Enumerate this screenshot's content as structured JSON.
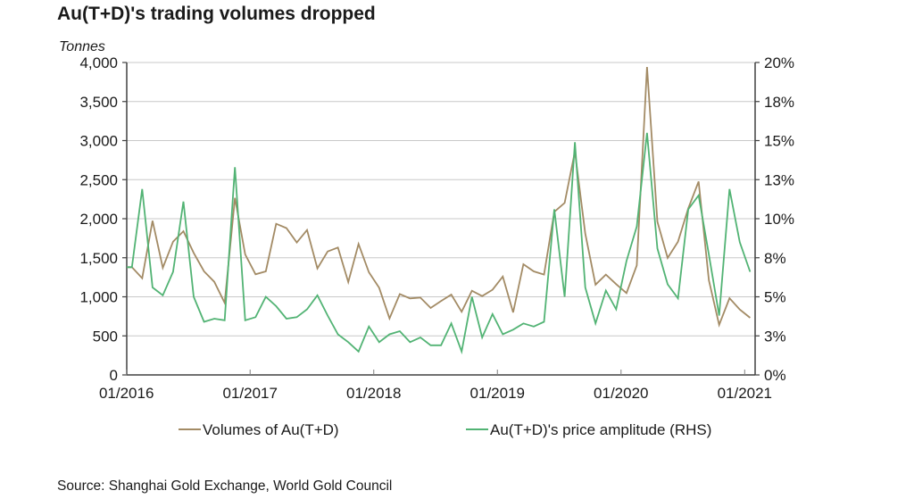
{
  "chart_data": {
    "type": "line",
    "title": "Au(T+D)'s trading volumes dropped",
    "source": "Source: Shanghai Gold Exchange, World Gold Council",
    "ylabel": "Tonnes",
    "ylabel_right": "",
    "xlabel": "",
    "grid": true,
    "legend_position": "bottom",
    "x_ticks": [
      "01/2016",
      "01/2017",
      "01/2018",
      "01/2019",
      "01/2020",
      "01/2021"
    ],
    "y_ticks": [
      "0",
      "500",
      "1,000",
      "1,500",
      "2,000",
      "2,500",
      "3,000",
      "3,500",
      "4,000"
    ],
    "y_ticks_right": [
      "0%",
      "3%",
      "5%",
      "8%",
      "10%",
      "13%",
      "15%",
      "18%",
      "20%"
    ],
    "ylim": [
      0,
      4000
    ],
    "ylim_right": [
      0,
      20
    ],
    "x": [
      "01/2016",
      "02/2016",
      "03/2016",
      "04/2016",
      "05/2016",
      "06/2016",
      "07/2016",
      "08/2016",
      "09/2016",
      "10/2016",
      "11/2016",
      "12/2016",
      "01/2017",
      "02/2017",
      "03/2017",
      "04/2017",
      "05/2017",
      "06/2017",
      "07/2017",
      "08/2017",
      "09/2017",
      "10/2017",
      "11/2017",
      "12/2017",
      "01/2018",
      "02/2018",
      "03/2018",
      "04/2018",
      "05/2018",
      "06/2018",
      "07/2018",
      "08/2018",
      "09/2018",
      "10/2018",
      "11/2018",
      "12/2018",
      "01/2019",
      "02/2019",
      "03/2019",
      "04/2019",
      "05/2019",
      "06/2019",
      "07/2019",
      "08/2019",
      "09/2019",
      "10/2019",
      "11/2019",
      "12/2019",
      "01/2020",
      "02/2020",
      "03/2020",
      "04/2020",
      "05/2020",
      "06/2020",
      "07/2020",
      "08/2020",
      "09/2020",
      "10/2020",
      "11/2020",
      "12/2020",
      "01/2021"
    ],
    "series": [
      {
        "name": "Volumes of Au(T+D)",
        "axis": "left",
        "color": "#a38b65",
        "values": [
          1379,
          1238,
          1974,
          1371,
          1706,
          1840,
          1562,
          1326,
          1192,
          922,
          2266,
          1543,
          1288,
          1326,
          1935,
          1880,
          1695,
          1855,
          1363,
          1581,
          1631,
          1189,
          1677,
          1314,
          1115,
          723,
          1036,
          979,
          990,
          857,
          945,
          1029,
          808,
          1078,
          1009,
          1090,
          1260,
          800,
          1417,
          1326,
          1285,
          2088,
          2202,
          2860,
          1809,
          1155,
          1285,
          1162,
          1048,
          1402,
          3943,
          1962,
          1497,
          1706,
          2133,
          2476,
          1211,
          640,
          983,
          838,
          731
        ]
      },
      {
        "name": "Au(T+D)'s price amplitude (RHS)",
        "axis": "right",
        "color": "#52b374",
        "values": [
          6.9,
          11.9,
          5.6,
          5.1,
          6.6,
          11.1,
          5.0,
          3.4,
          3.6,
          3.5,
          13.3,
          3.5,
          3.7,
          5.0,
          4.4,
          3.6,
          3.7,
          4.2,
          5.1,
          3.8,
          2.6,
          2.1,
          1.5,
          3.1,
          2.1,
          2.6,
          2.8,
          2.1,
          2.4,
          1.9,
          1.9,
          3.3,
          1.5,
          5.0,
          2.4,
          3.9,
          2.6,
          2.9,
          3.3,
          3.1,
          3.4,
          10.6,
          5.0,
          14.9,
          5.6,
          3.3,
          5.4,
          4.2,
          7.3,
          9.5,
          15.5,
          8.1,
          5.8,
          4.9,
          10.6,
          11.5,
          7.7,
          3.8,
          11.9,
          8.5,
          6.6
        ]
      }
    ]
  }
}
